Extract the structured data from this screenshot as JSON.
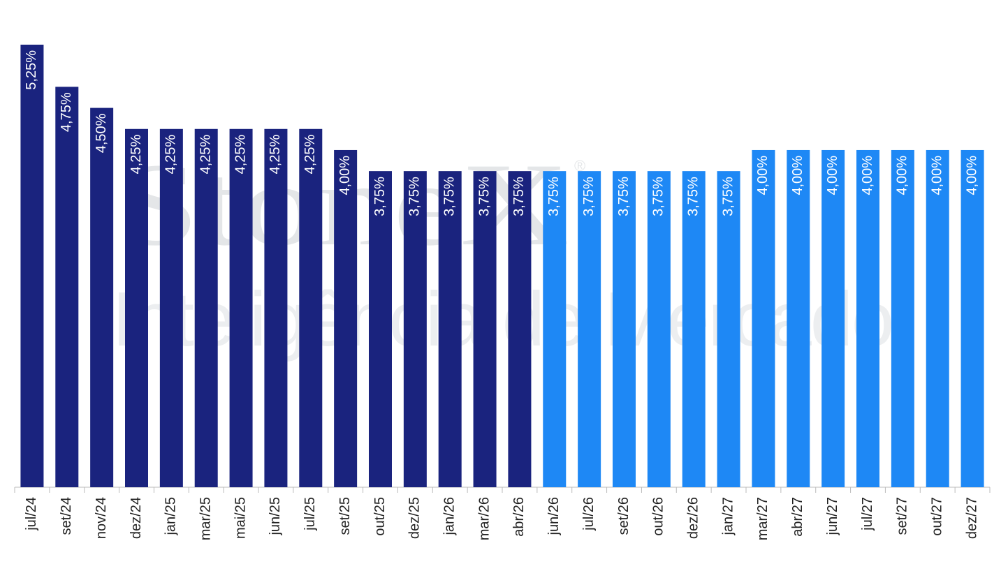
{
  "chart_data": {
    "type": "bar",
    "watermark": {
      "brand": "StoneX",
      "mark": "®",
      "subtitle": "Inteligência de Mercado"
    },
    "categories": [
      "jul/24",
      "set/24",
      "nov/24",
      "dez/24",
      "jan/25",
      "mar/25",
      "mai/25",
      "jun/25",
      "jul/25",
      "set/25",
      "out/25",
      "dez/25",
      "jan/26",
      "mar/26",
      "abr/26",
      "jun/26",
      "jul/26",
      "set/26",
      "out/26",
      "dez/26",
      "jan/27",
      "mar/27",
      "abr/27",
      "jun/27",
      "jul/27",
      "set/27",
      "out/27",
      "dez/27"
    ],
    "values": [
      5.25,
      4.75,
      4.5,
      4.25,
      4.25,
      4.25,
      4.25,
      4.25,
      4.25,
      4.0,
      3.75,
      3.75,
      3.75,
      3.75,
      3.75,
      3.75,
      3.75,
      3.75,
      3.75,
      3.75,
      3.75,
      4.0,
      4.0,
      4.0,
      4.0,
      4.0,
      4.0,
      4.0
    ],
    "value_labels": [
      "5,25%",
      "4,75%",
      "4,50%",
      "4,25%",
      "4,25%",
      "4,25%",
      "4,25%",
      "4,25%",
      "4,25%",
      "4,00%",
      "3,75%",
      "3,75%",
      "3,75%",
      "3,75%",
      "3,75%",
      "3,75%",
      "3,75%",
      "3,75%",
      "3,75%",
      "3,75%",
      "3,75%",
      "4,00%",
      "4,00%",
      "4,00%",
      "4,00%",
      "4,00%",
      "4,00%",
      "4,00%"
    ],
    "colors": [
      "#1a237e",
      "#1a237e",
      "#1a237e",
      "#1a237e",
      "#1a237e",
      "#1a237e",
      "#1a237e",
      "#1a237e",
      "#1a237e",
      "#1a237e",
      "#1a237e",
      "#1a237e",
      "#1a237e",
      "#1a237e",
      "#1a237e",
      "#1e88f5",
      "#1e88f5",
      "#1e88f5",
      "#1e88f5",
      "#1e88f5",
      "#1e88f5",
      "#1e88f5",
      "#1e88f5",
      "#1e88f5",
      "#1e88f5",
      "#1e88f5",
      "#1e88f5",
      "#1e88f5"
    ],
    "ylim": [
      0,
      5.25
    ]
  }
}
